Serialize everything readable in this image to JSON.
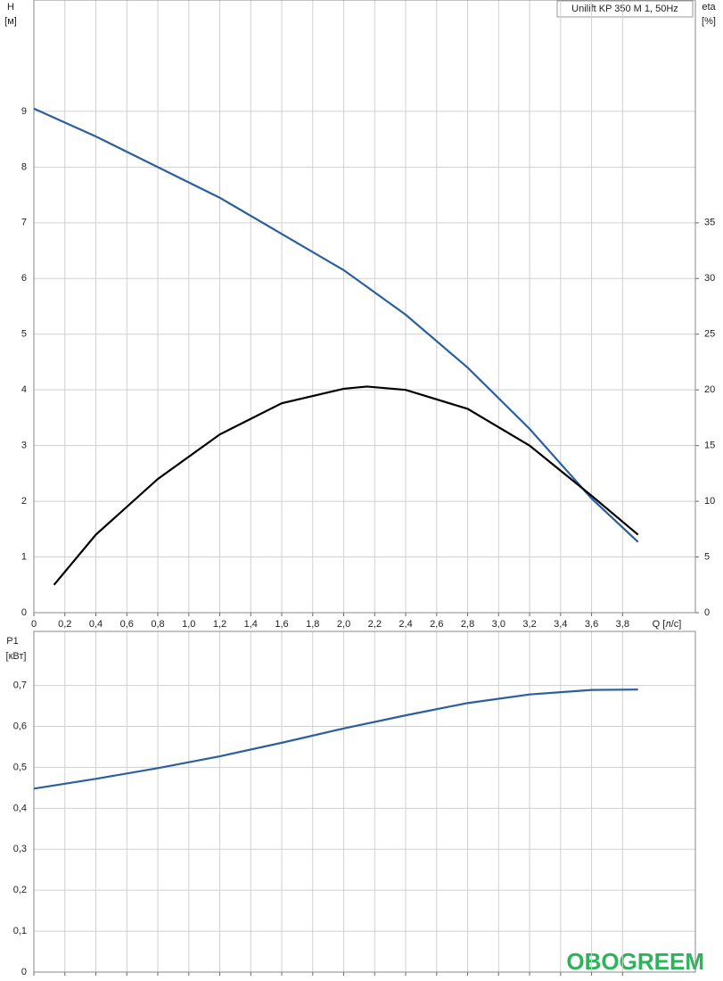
{
  "chart_data": [
    {
      "type": "line",
      "title": "Unilift KP 350 M 1, 50Hz",
      "ylabel": "H",
      "yunit": "[м]",
      "y2label": "eta",
      "y2unit": "[%]",
      "xlabel": "Q [л/с]",
      "xlim": [
        0,
        4.27
      ],
      "ylim": [
        0,
        11
      ],
      "y2lim": [
        0,
        55
      ],
      "grid": true,
      "xticks": [
        0,
        {
          "value": 0.2,
          "label": "0,2"
        },
        {
          "value": 0.4,
          "label": "0,4"
        },
        {
          "value": 0.6,
          "label": "0,6"
        },
        {
          "value": 0.8,
          "label": "0,8"
        },
        {
          "value": 1.0,
          "label": "1,0"
        },
        {
          "value": 1.2,
          "label": "1,2"
        },
        {
          "value": 1.4,
          "label": "1,4"
        },
        {
          "value": 1.6,
          "label": "1,6"
        },
        {
          "value": 1.8,
          "label": "1,8"
        },
        {
          "value": 2.0,
          "label": "2,0"
        },
        {
          "value": 2.2,
          "label": "2,2"
        },
        {
          "value": 2.4,
          "label": "2,4"
        },
        {
          "value": 2.6,
          "label": "2,6"
        },
        {
          "value": 2.8,
          "label": "2,8"
        },
        {
          "value": 3.0,
          "label": "3,0"
        },
        {
          "value": 3.2,
          "label": "3,2"
        },
        {
          "value": 3.4,
          "label": "3,4"
        },
        {
          "value": 3.6,
          "label": "3,6"
        },
        {
          "value": 3.8,
          "label": "3,8"
        }
      ],
      "yticks": [
        0,
        1,
        2,
        3,
        4,
        5,
        6,
        7,
        8,
        9
      ],
      "y2ticks": [
        0,
        5,
        10,
        15,
        20,
        25,
        30,
        35
      ],
      "series": [
        {
          "name": "H",
          "color": "#2b5f9e",
          "axis": "y",
          "x": [
            0,
            0.4,
            0.8,
            1.2,
            1.6,
            2.0,
            2.4,
            2.8,
            3.2,
            3.6,
            3.9
          ],
          "values": [
            9.05,
            8.55,
            8.0,
            7.45,
            6.8,
            6.15,
            5.35,
            4.4,
            3.3,
            2.05,
            1.27
          ]
        },
        {
          "name": "eta",
          "color": "#000000",
          "axis": "y2",
          "x": [
            0.13,
            0.4,
            0.8,
            1.2,
            1.6,
            2.0,
            2.15,
            2.4,
            2.8,
            3.2,
            3.6,
            3.9
          ],
          "values": [
            2.5,
            7,
            12,
            16,
            18.8,
            20.1,
            20.3,
            20.0,
            18.3,
            15,
            10.5,
            7
          ]
        }
      ]
    },
    {
      "type": "line",
      "ylabel": "P1",
      "yunit": "[кВт]",
      "xlim": [
        0,
        4.27
      ],
      "ylim": [
        0,
        0.832
      ],
      "grid": true,
      "yticks": [
        0,
        {
          "value": 0.1,
          "label": "0,1"
        },
        {
          "value": 0.2,
          "label": "0,2"
        },
        {
          "value": 0.3,
          "label": "0,3"
        },
        {
          "value": 0.4,
          "label": "0,4"
        },
        {
          "value": 0.5,
          "label": "0,5"
        },
        {
          "value": 0.6,
          "label": "0,6"
        },
        {
          "value": 0.7,
          "label": "0,7"
        }
      ],
      "series": [
        {
          "name": "P1",
          "color": "#2b5f9e",
          "x": [
            0,
            0.4,
            0.8,
            1.2,
            1.6,
            2.0,
            2.4,
            2.8,
            3.2,
            3.6,
            3.9
          ],
          "values": [
            0.448,
            0.472,
            0.498,
            0.527,
            0.56,
            0.595,
            0.627,
            0.657,
            0.678,
            0.689,
            0.69
          ]
        }
      ]
    }
  ],
  "watermark": "OBOGREEM"
}
